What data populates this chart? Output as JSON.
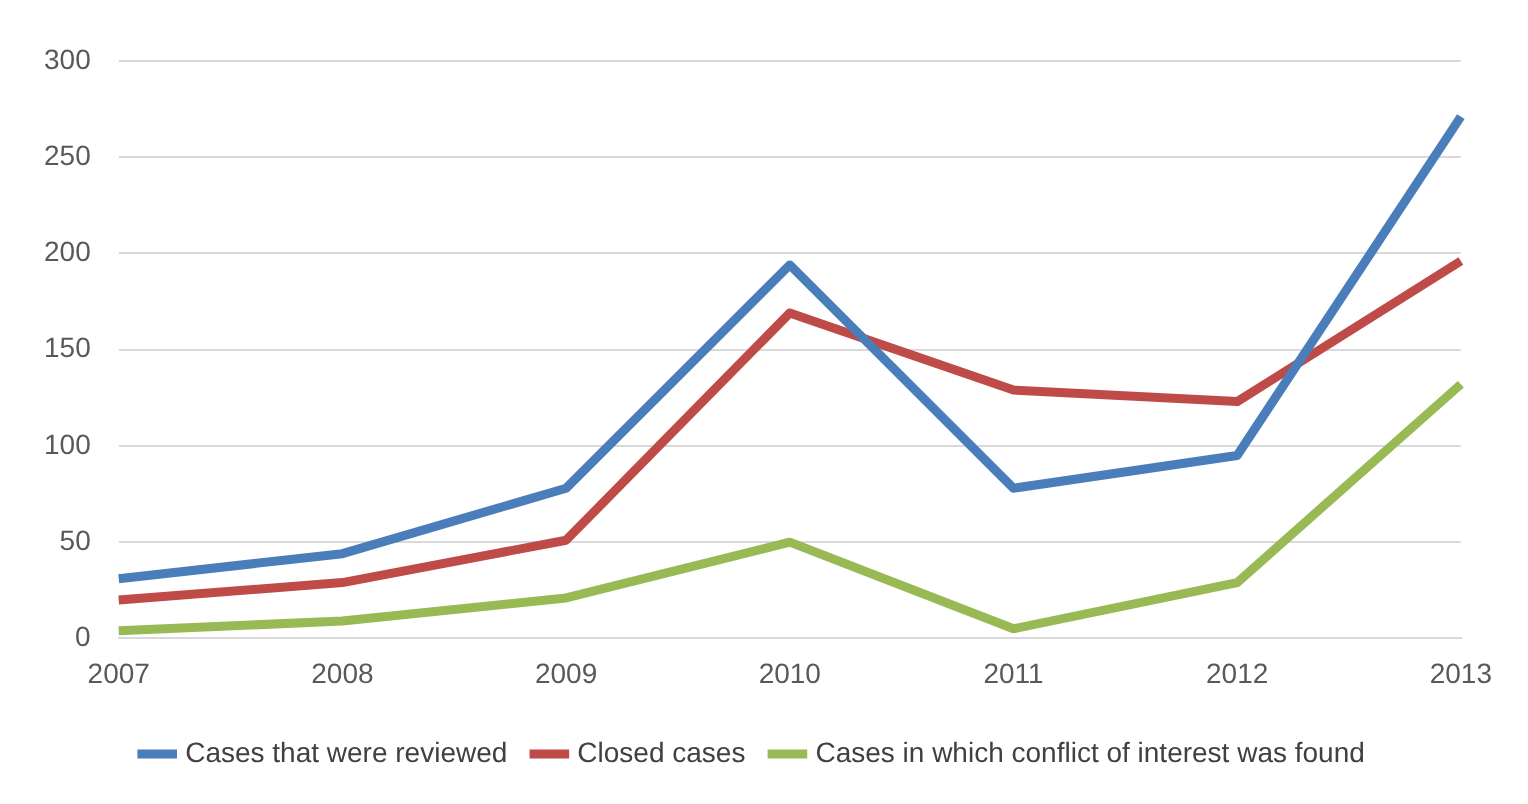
{
  "chart_data": {
    "type": "line",
    "categories": [
      "2007",
      "2008",
      "2009",
      "2010",
      "2011",
      "2012",
      "2013"
    ],
    "series": [
      {
        "name": "Cases that were reviewed",
        "color": "#4a7ebb",
        "values": [
          31,
          44,
          78,
          194,
          78,
          95,
          271
        ]
      },
      {
        "name": "Closed cases",
        "color": "#be4b48",
        "values": [
          20,
          29,
          51,
          169,
          129,
          123,
          196
        ]
      },
      {
        "name": "Cases in which conflict of interest was found",
        "color": "#98b954",
        "values": [
          4,
          9,
          21,
          50,
          5,
          29,
          132
        ]
      }
    ],
    "ylim": [
      0,
      300
    ],
    "yticks": [
      0,
      50,
      100,
      150,
      200,
      250,
      300
    ],
    "grid": "y",
    "legend": "bottom",
    "marker": "none",
    "line_style": "solid"
  }
}
